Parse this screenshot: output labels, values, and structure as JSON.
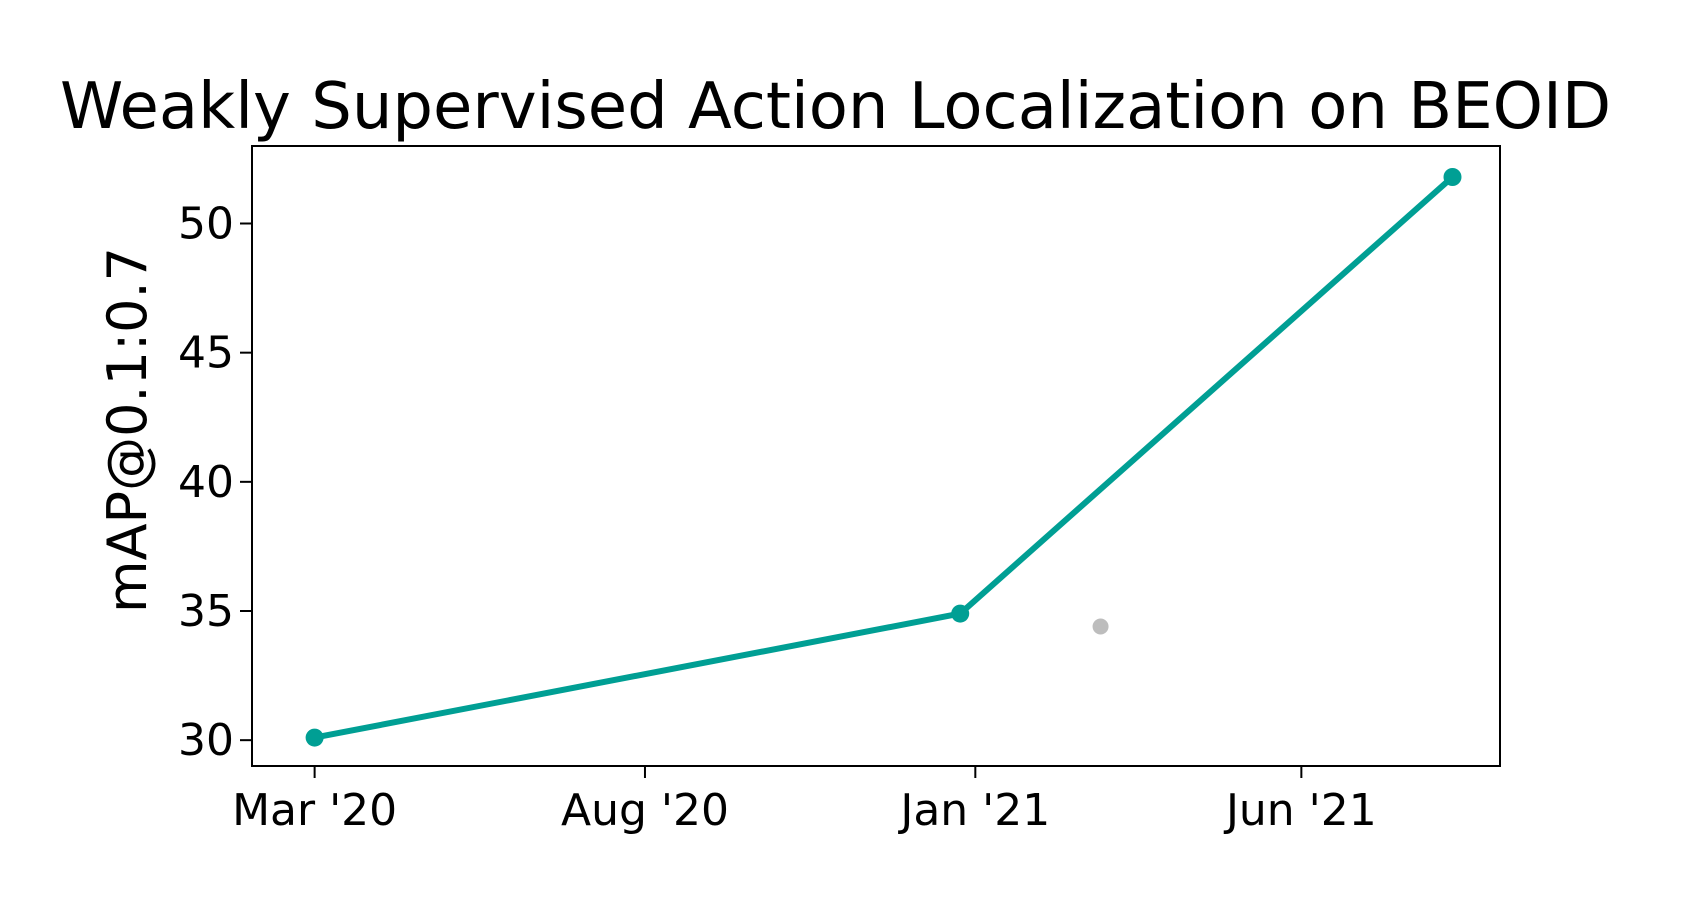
{
  "chart_data": {
    "type": "line",
    "title": "Weakly Supervised Action Localization on BEOID",
    "xlabel": "",
    "ylabel": "mAP@0.1:0.7",
    "x_ticks": [
      "Mar '20",
      "Aug '20",
      "Jan '21",
      "Jun '21"
    ],
    "y_ticks": [
      "30",
      "35",
      "40",
      "45",
      "50"
    ],
    "xlim": [
      "2020-02-01",
      "2021-09-01"
    ],
    "ylim": [
      29,
      53
    ],
    "grid": false,
    "series": [
      {
        "x": [
          "2020-03-01",
          "2020-12-25",
          "2021-08-10"
        ],
        "y": [
          30.1,
          34.9,
          51.8
        ],
        "color": "#009f94"
      }
    ],
    "extra_points": [
      {
        "x": "2021-02-28",
        "y": 34.4,
        "color": "#bdbdbd"
      }
    ]
  }
}
